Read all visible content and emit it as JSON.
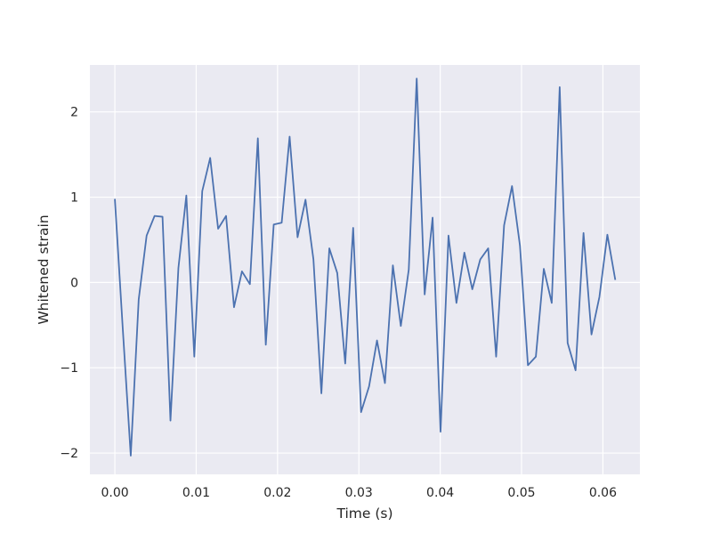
{
  "chart_data": {
    "type": "line",
    "title": "",
    "xlabel": "Time (s)",
    "ylabel": "Whitened strain",
    "xlim": [
      -0.00307,
      0.06455
    ],
    "ylim": [
      -2.25,
      2.55
    ],
    "xticks": [
      0.0,
      0.01,
      0.02,
      0.03,
      0.04,
      0.05,
      0.06
    ],
    "xtick_labels": [
      "0.00",
      "0.01",
      "0.02",
      "0.03",
      "0.04",
      "0.05",
      "0.06"
    ],
    "yticks": [
      -2,
      -1,
      0,
      1,
      2
    ],
    "ytick_labels": [
      "−2",
      "−1",
      "0",
      "1",
      "2"
    ],
    "grid": true,
    "legend": false,
    "colors": {
      "plot_background": "#eaeaf2",
      "grid": "#ffffff",
      "line": "#4c72b0"
    },
    "series": [
      {
        "x": [
          0.0,
          0.000977,
          0.001953,
          0.00293,
          0.003906,
          0.004883,
          0.005859,
          0.006836,
          0.007813,
          0.008789,
          0.009766,
          0.010742,
          0.011719,
          0.012695,
          0.013672,
          0.014648,
          0.015625,
          0.016602,
          0.017578,
          0.018555,
          0.019531,
          0.020508,
          0.021484,
          0.022461,
          0.023438,
          0.024414,
          0.025391,
          0.026367,
          0.027344,
          0.02832,
          0.029297,
          0.030273,
          0.03125,
          0.032227,
          0.033203,
          0.03418,
          0.035156,
          0.036133,
          0.037109,
          0.038086,
          0.039063,
          0.040039,
          0.041016,
          0.041992,
          0.042969,
          0.043945,
          0.044922,
          0.045898,
          0.046875,
          0.047852,
          0.048828,
          0.049805,
          0.050781,
          0.051758,
          0.052734,
          0.053711,
          0.054688,
          0.055664,
          0.056641,
          0.057617,
          0.058594,
          0.05957,
          0.060547,
          0.061523
        ],
        "values": [
          0.98,
          -0.55,
          -2.03,
          -0.2,
          0.55,
          0.78,
          0.77,
          -1.62,
          0.17,
          1.02,
          -0.87,
          1.07,
          1.46,
          0.63,
          0.78,
          -0.29,
          0.13,
          -0.02,
          1.69,
          -0.73,
          0.68,
          0.7,
          1.71,
          0.53,
          0.97,
          0.27,
          -1.3,
          0.4,
          0.11,
          -0.95,
          0.64,
          -1.52,
          -1.22,
          -0.68,
          -1.18,
          0.2,
          -0.51,
          0.15,
          2.39,
          -0.14,
          0.76,
          -1.75,
          0.55,
          -0.24,
          0.35,
          -0.08,
          0.27,
          0.4,
          -0.87,
          0.67,
          1.13,
          0.43,
          -0.97,
          -0.87,
          0.16,
          -0.24,
          2.29,
          -0.71,
          -1.03,
          0.58,
          -0.61,
          -0.17,
          0.56,
          0.03
        ]
      }
    ]
  }
}
